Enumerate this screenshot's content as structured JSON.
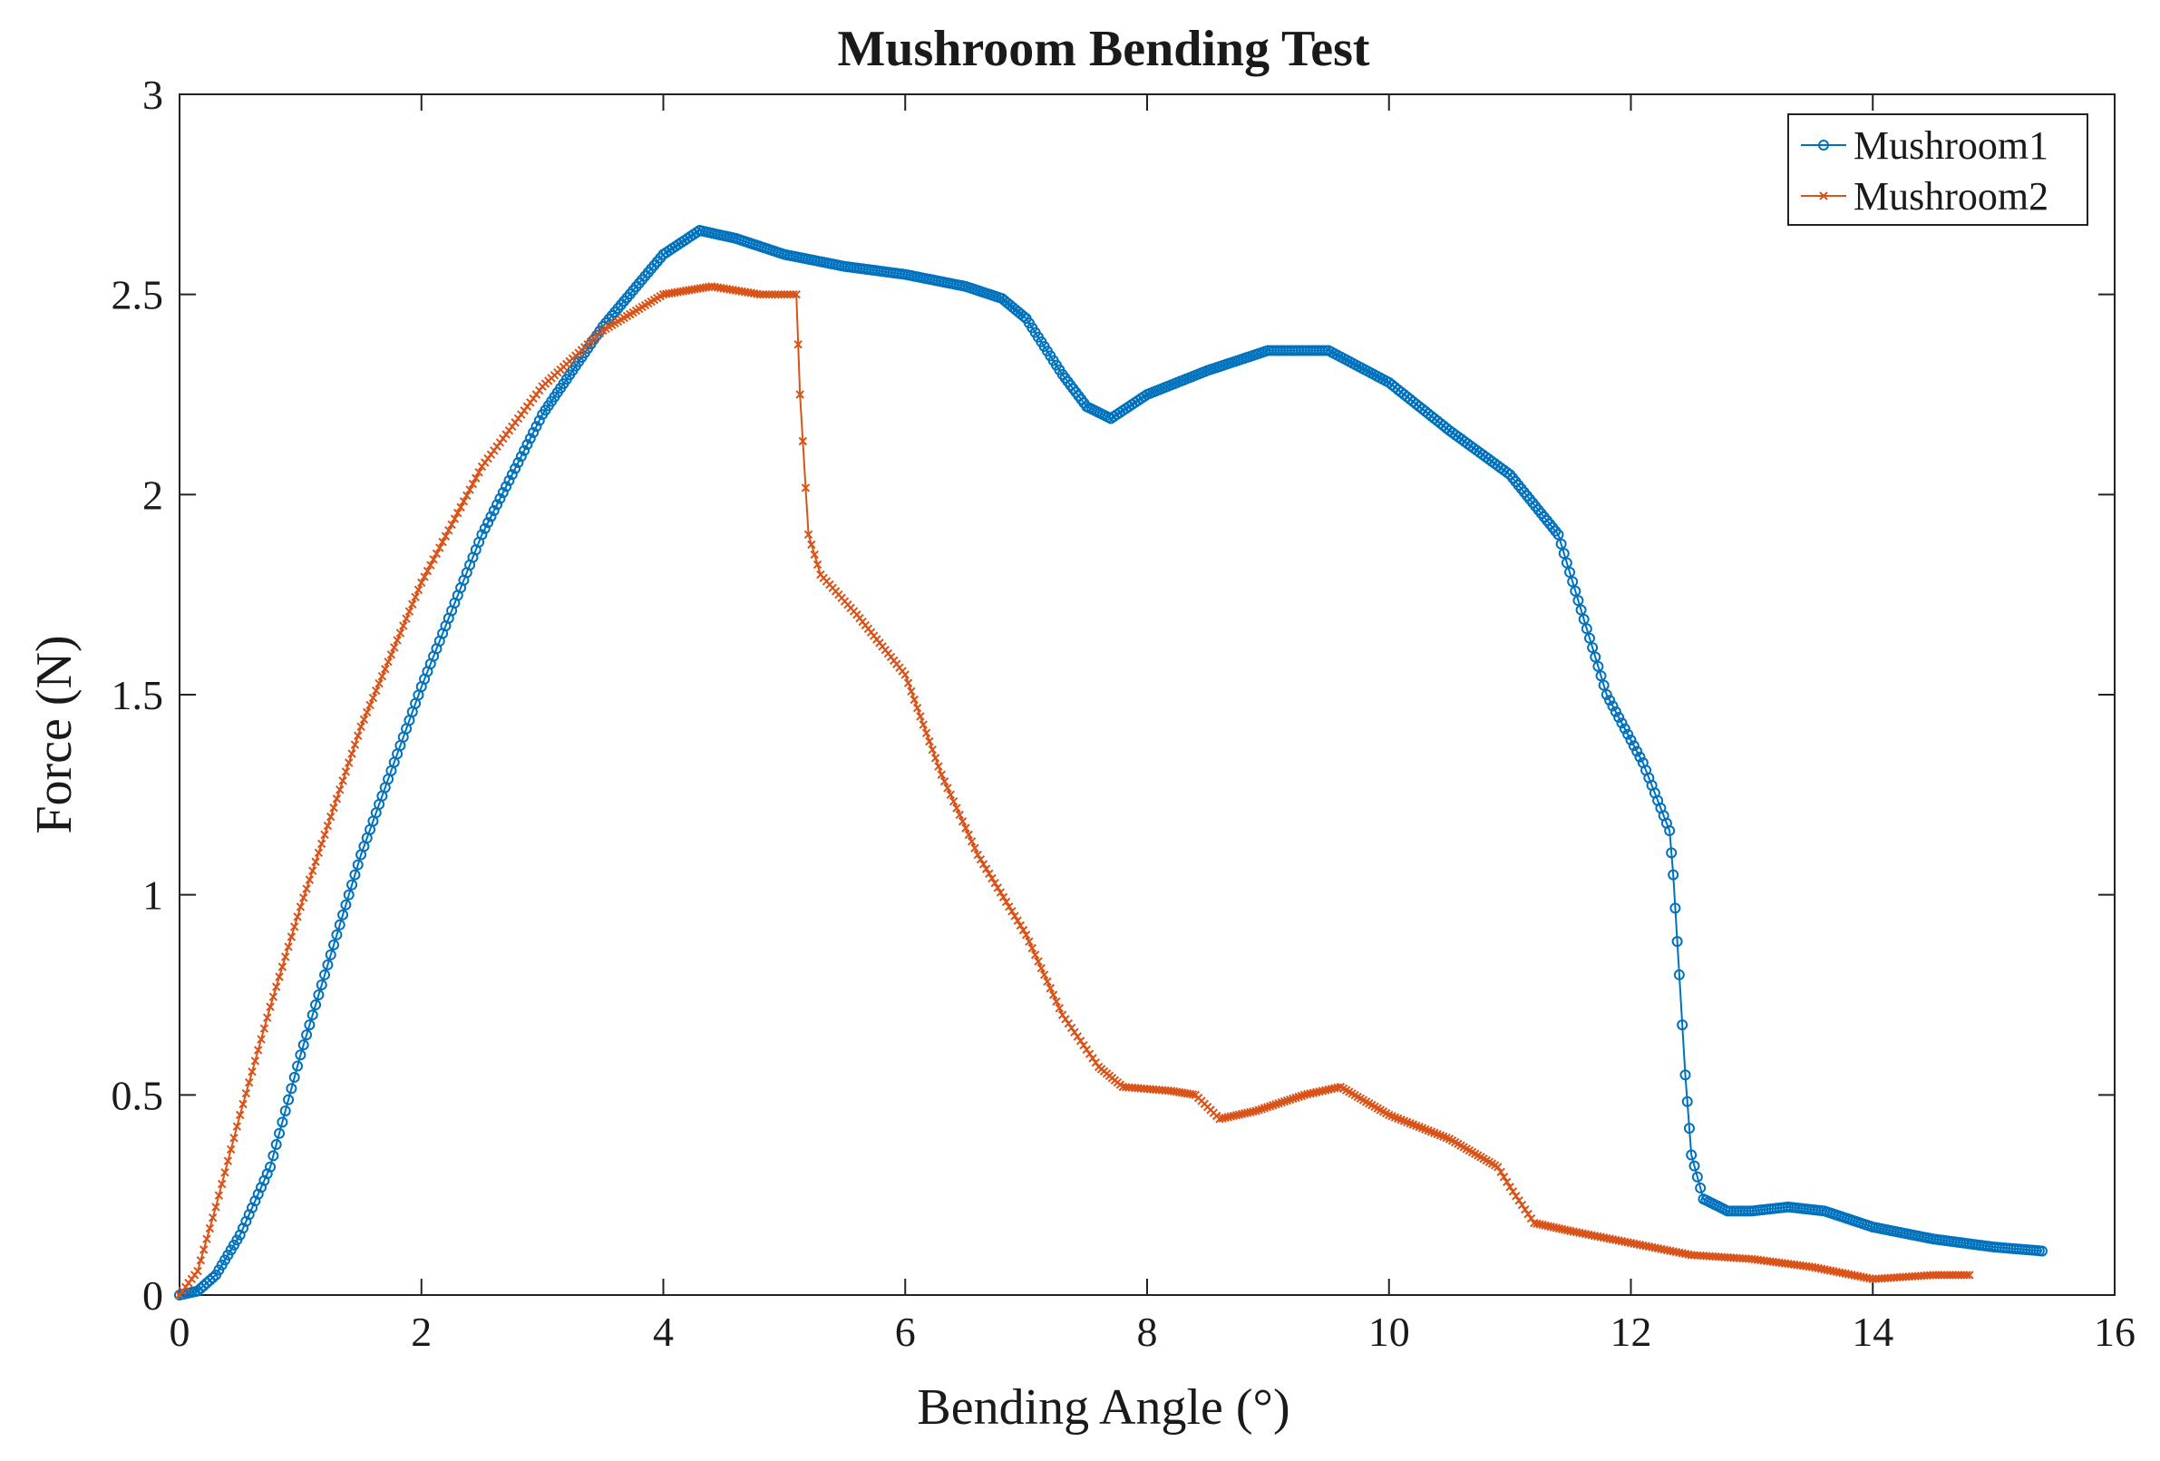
{
  "chart_data": {
    "type": "line",
    "title": "Mushroom Bending Test",
    "xlabel": "Bending Angle (°)",
    "ylabel": "Force (N)",
    "xlim": [
      0,
      16
    ],
    "ylim": [
      0,
      3
    ],
    "xticks": [
      "0",
      "2",
      "4",
      "6",
      "8",
      "10",
      "12",
      "14",
      "16"
    ],
    "yticks": [
      "0",
      "0.5",
      "1",
      "1.5",
      "2",
      "2.5",
      "3"
    ],
    "grid": false,
    "legend_position": "top-right",
    "series": [
      {
        "name": "Mushroom1",
        "color": "#0072BD",
        "marker": "circle",
        "points": [
          [
            0,
            0
          ],
          [
            0.15,
            0.01
          ],
          [
            0.3,
            0.05
          ],
          [
            0.5,
            0.15
          ],
          [
            0.75,
            0.32
          ],
          [
            1.0,
            0.6
          ],
          [
            1.5,
            1.1
          ],
          [
            2.0,
            1.52
          ],
          [
            2.5,
            1.9
          ],
          [
            3.0,
            2.2
          ],
          [
            3.5,
            2.42
          ],
          [
            4.0,
            2.6
          ],
          [
            4.3,
            2.66
          ],
          [
            4.6,
            2.64
          ],
          [
            5.0,
            2.6
          ],
          [
            5.5,
            2.57
          ],
          [
            6.0,
            2.55
          ],
          [
            6.5,
            2.52
          ],
          [
            6.8,
            2.49
          ],
          [
            7.0,
            2.44
          ],
          [
            7.3,
            2.3
          ],
          [
            7.5,
            2.22
          ],
          [
            7.7,
            2.19
          ],
          [
            8.0,
            2.25
          ],
          [
            8.5,
            2.31
          ],
          [
            9.0,
            2.36
          ],
          [
            9.5,
            2.36
          ],
          [
            10.0,
            2.28
          ],
          [
            10.5,
            2.16
          ],
          [
            11.0,
            2.05
          ],
          [
            11.4,
            1.9
          ],
          [
            11.8,
            1.5
          ],
          [
            12.1,
            1.33
          ],
          [
            12.32,
            1.16
          ],
          [
            12.35,
            1.05
          ],
          [
            12.4,
            0.8
          ],
          [
            12.45,
            0.55
          ],
          [
            12.5,
            0.35
          ],
          [
            12.6,
            0.24
          ],
          [
            12.8,
            0.21
          ],
          [
            13.0,
            0.21
          ],
          [
            13.3,
            0.22
          ],
          [
            13.6,
            0.21
          ],
          [
            14.0,
            0.17
          ],
          [
            14.5,
            0.14
          ],
          [
            15.0,
            0.12
          ],
          [
            15.4,
            0.11
          ]
        ]
      },
      {
        "name": "Mushroom2",
        "color": "#D95319",
        "marker": "x",
        "points": [
          [
            0,
            0
          ],
          [
            0.15,
            0.06
          ],
          [
            0.3,
            0.22
          ],
          [
            0.5,
            0.45
          ],
          [
            0.75,
            0.72
          ],
          [
            1.0,
            0.97
          ],
          [
            1.5,
            1.42
          ],
          [
            2.0,
            1.78
          ],
          [
            2.5,
            2.07
          ],
          [
            3.0,
            2.27
          ],
          [
            3.5,
            2.41
          ],
          [
            4.0,
            2.5
          ],
          [
            4.4,
            2.52
          ],
          [
            4.8,
            2.5
          ],
          [
            5.1,
            2.5
          ],
          [
            5.13,
            2.25
          ],
          [
            5.2,
            1.9
          ],
          [
            5.3,
            1.8
          ],
          [
            5.6,
            1.7
          ],
          [
            6.0,
            1.55
          ],
          [
            6.3,
            1.3
          ],
          [
            6.6,
            1.1
          ],
          [
            7.0,
            0.9
          ],
          [
            7.3,
            0.7
          ],
          [
            7.6,
            0.57
          ],
          [
            7.8,
            0.52
          ],
          [
            8.2,
            0.51
          ],
          [
            8.4,
            0.5
          ],
          [
            8.6,
            0.44
          ],
          [
            8.9,
            0.46
          ],
          [
            9.3,
            0.5
          ],
          [
            9.6,
            0.52
          ],
          [
            10.0,
            0.45
          ],
          [
            10.5,
            0.39
          ],
          [
            10.9,
            0.32
          ],
          [
            11.0,
            0.27
          ],
          [
            11.2,
            0.18
          ],
          [
            11.5,
            0.16
          ],
          [
            12.0,
            0.13
          ],
          [
            12.5,
            0.1
          ],
          [
            13.0,
            0.09
          ],
          [
            13.5,
            0.07
          ],
          [
            14.0,
            0.04
          ],
          [
            14.5,
            0.05
          ],
          [
            14.8,
            0.05
          ]
        ]
      }
    ]
  }
}
